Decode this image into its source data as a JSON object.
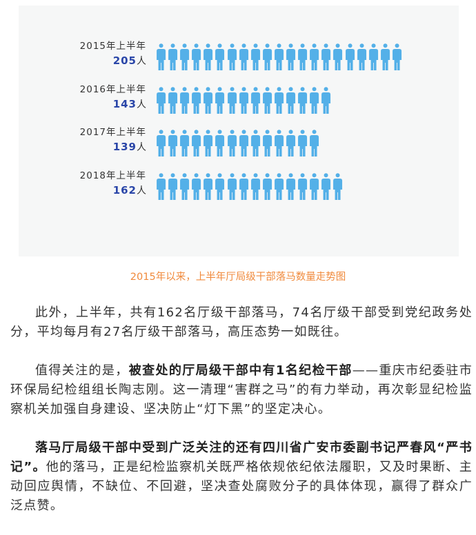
{
  "infographic": {
    "icon_color": "#54b0e8",
    "number_color": "#2a46a8",
    "rows": [
      {
        "period": "2015年上半年",
        "count": "205",
        "unit": "人",
        "icons": 21
      },
      {
        "period": "2016年上半年",
        "count": "143",
        "unit": "人",
        "icons": 15
      },
      {
        "period": "2017年上半年",
        "count": "139",
        "unit": "人",
        "icons": 14
      },
      {
        "period": "2018年上半年",
        "count": "162",
        "unit": "人",
        "icons": 16
      }
    ]
  },
  "caption": "2015年以来，上半年厅局级干部落马数量走势图",
  "paragraphs": [
    [
      {
        "text": "此外，上半年，共有162名厅级干部落马，74名厅级干部受到党纪政务处分，平均每月有27名厅级干部落马，高压态势一如既往。",
        "bold": false
      }
    ],
    [
      {
        "text": "值得关注的是，",
        "bold": false
      },
      {
        "text": "被查处的厅局级干部中有1名纪检干部",
        "bold": true
      },
      {
        "text": "——重庆市纪委驻市环保局纪检组组长陶志刚。这一清理“害群之马”的有力举动，再次彰显纪检监察机关加强自身建设、坚决防止“灯下黑”的坚定决心。",
        "bold": false
      }
    ],
    [
      {
        "text": "落马厅局级干部中受到广泛关注的还有四川省广安市委副书记严春风“严书记”。",
        "bold": true
      },
      {
        "text": "他的落马，正是纪检监察机关既严格依规依纪依法履职，又及时果断、主动回应舆情，不缺位、不回避，坚决查处腐败分子的具体体现，赢得了群众广泛点赞。",
        "bold": false
      }
    ]
  ]
}
